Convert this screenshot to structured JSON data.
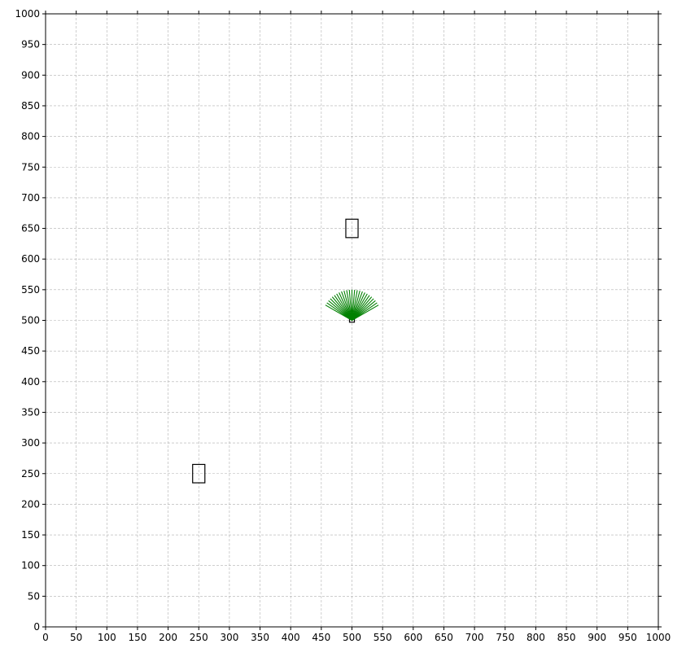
{
  "chart_data": {
    "type": "scatter",
    "title": "",
    "xlabel": "",
    "ylabel": "",
    "xlim": [
      0,
      1000
    ],
    "ylim": [
      0,
      1000
    ],
    "xticks": [
      0,
      50,
      100,
      150,
      200,
      250,
      300,
      350,
      400,
      450,
      500,
      550,
      600,
      650,
      700,
      750,
      800,
      850,
      900,
      950,
      1000
    ],
    "yticks": [
      0,
      50,
      100,
      150,
      200,
      250,
      300,
      350,
      400,
      450,
      500,
      550,
      600,
      650,
      700,
      750,
      800,
      850,
      900,
      950,
      1000
    ],
    "grid": true,
    "grid_color": "#b0b0b0",
    "axis_color": "#000000",
    "rectangles": [
      {
        "name": "obstacle",
        "x": [
          490,
          510
        ],
        "y": [
          635,
          665
        ]
      },
      {
        "name": "obstacle",
        "x": [
          240,
          260
        ],
        "y": [
          235,
          265
        ]
      },
      {
        "name": "agent",
        "x": [
          496,
          504
        ],
        "y": [
          497,
          503
        ]
      }
    ],
    "fan": {
      "color": "#008000",
      "origin": [
        500,
        500
      ],
      "rays": [
        {
          "angle_deg": 30,
          "length": 50
        },
        {
          "angle_deg": 35,
          "length": 50
        },
        {
          "angle_deg": 40,
          "length": 50
        },
        {
          "angle_deg": 45,
          "length": 50
        },
        {
          "angle_deg": 50,
          "length": 50
        },
        {
          "angle_deg": 55,
          "length": 50
        },
        {
          "angle_deg": 60,
          "length": 50
        },
        {
          "angle_deg": 65,
          "length": 50
        },
        {
          "angle_deg": 70,
          "length": 50
        },
        {
          "angle_deg": 75,
          "length": 50
        },
        {
          "angle_deg": 80,
          "length": 50
        },
        {
          "angle_deg": 85,
          "length": 50
        },
        {
          "angle_deg": 90,
          "length": 50
        },
        {
          "angle_deg": 95,
          "length": 50
        },
        {
          "angle_deg": 100,
          "length": 50
        },
        {
          "angle_deg": 105,
          "length": 50
        },
        {
          "angle_deg": 110,
          "length": 50
        },
        {
          "angle_deg": 115,
          "length": 50
        },
        {
          "angle_deg": 120,
          "length": 50
        },
        {
          "angle_deg": 125,
          "length": 50
        },
        {
          "angle_deg": 130,
          "length": 50
        },
        {
          "angle_deg": 135,
          "length": 50
        },
        {
          "angle_deg": 140,
          "length": 50
        },
        {
          "angle_deg": 145,
          "length": 50
        },
        {
          "angle_deg": 150,
          "length": 50
        }
      ]
    }
  }
}
